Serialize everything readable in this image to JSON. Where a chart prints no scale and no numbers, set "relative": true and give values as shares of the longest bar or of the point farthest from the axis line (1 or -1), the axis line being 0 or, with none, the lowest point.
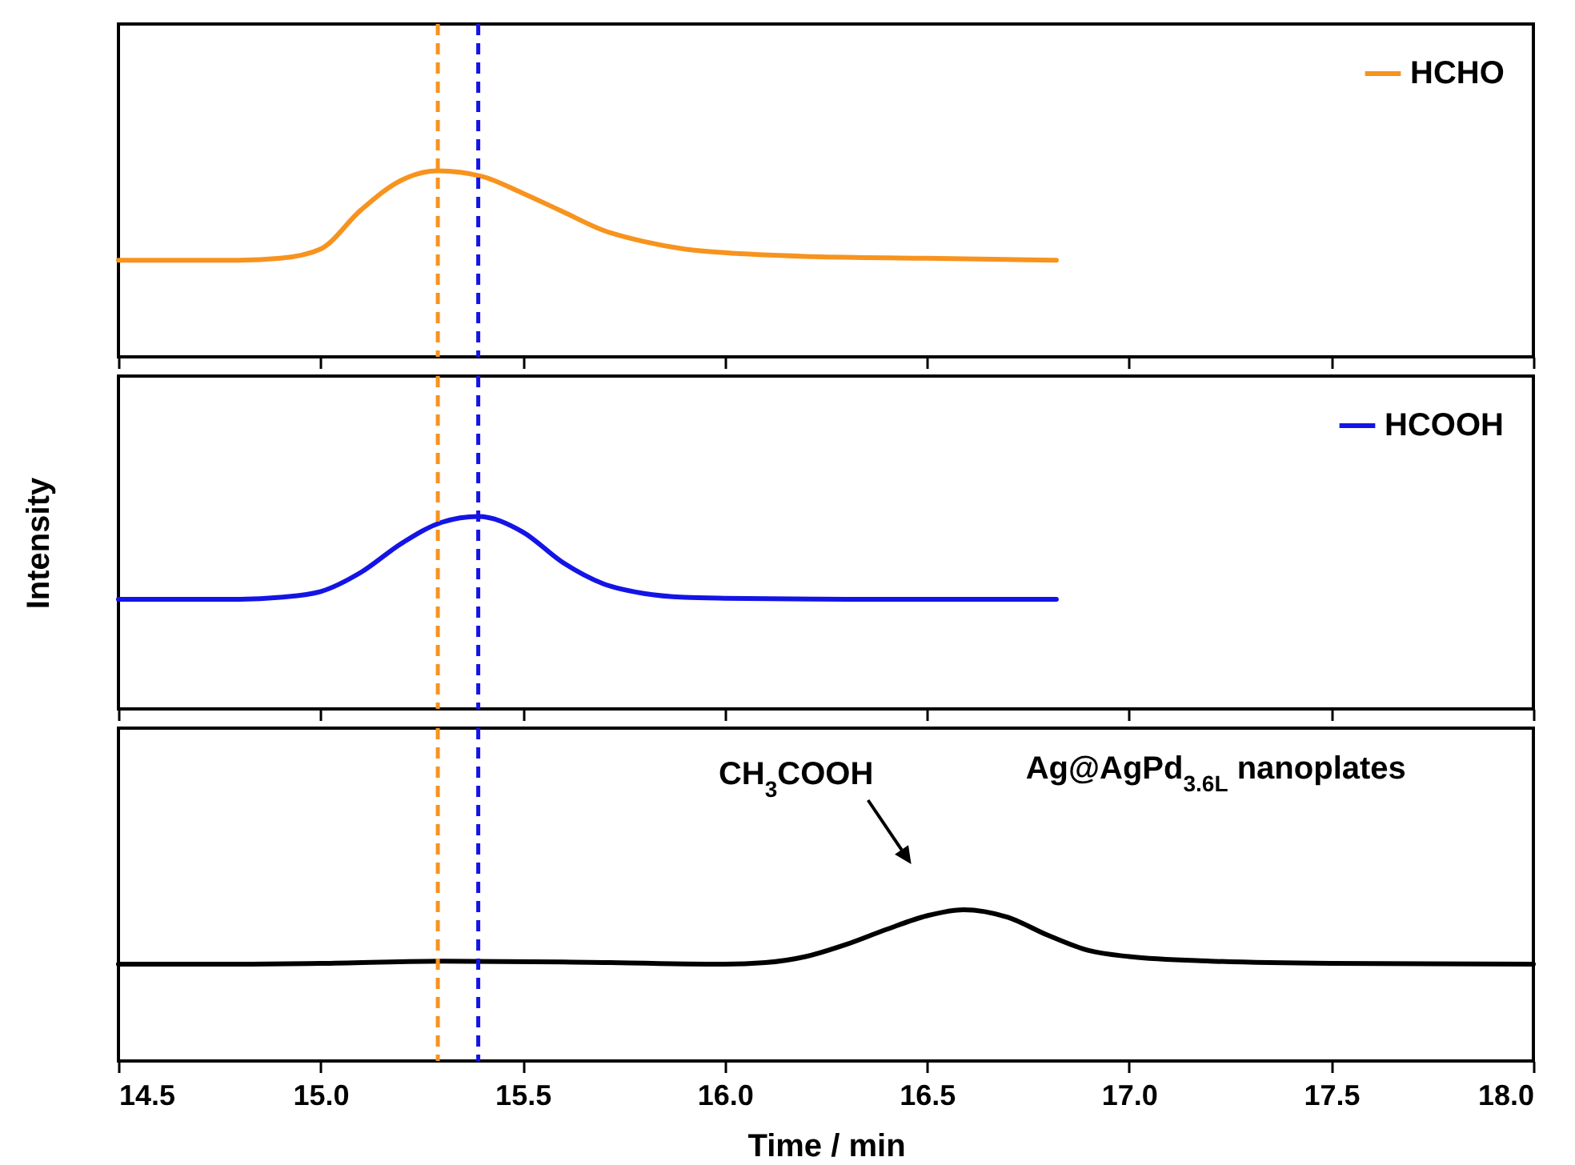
{
  "chart_data": [
    {
      "type": "line",
      "relative": true,
      "xlim": [
        14.5,
        18.0
      ],
      "xticks": [
        14.5,
        15.0,
        15.5,
        16.0,
        16.5,
        17.0,
        17.5,
        18.0
      ],
      "tick_labels": false,
      "legend": "top right",
      "grid": false,
      "line_style": "solid",
      "marker": "none",
      "series": [
        {
          "name": "HCHO",
          "color": "#f7931e",
          "x": [
            14.5,
            14.8,
            14.9,
            15.0,
            15.1,
            15.2,
            15.29,
            15.4,
            15.5,
            15.6,
            15.7,
            15.8,
            15.9,
            16.0,
            16.2,
            16.5,
            16.82
          ],
          "values": [
            0.52,
            0.52,
            0.53,
            0.58,
            0.79,
            0.95,
            1.0,
            0.97,
            0.88,
            0.78,
            0.68,
            0.62,
            0.58,
            0.56,
            0.54,
            0.53,
            0.52
          ]
        }
      ],
      "ref_lines": [
        {
          "axis": "x",
          "value": 15.29,
          "color": "#f7931e",
          "line_style": "dashed"
        },
        {
          "axis": "x",
          "value": 15.39,
          "color": "#1414e6",
          "line_style": "dashed"
        }
      ]
    },
    {
      "type": "line",
      "relative": true,
      "ylabel": "Intensity",
      "xlim": [
        14.5,
        18.0
      ],
      "xticks": [
        14.5,
        15.0,
        15.5,
        16.0,
        16.5,
        17.0,
        17.5,
        18.0
      ],
      "tick_labels": false,
      "legend": "top right",
      "grid": false,
      "line_style": "solid",
      "marker": "none",
      "series": [
        {
          "name": "HCOOH",
          "color": "#1414e6",
          "x": [
            14.5,
            14.8,
            14.9,
            15.0,
            15.1,
            15.2,
            15.3,
            15.39,
            15.5,
            15.6,
            15.7,
            15.8,
            15.9,
            16.0,
            16.3,
            16.82
          ],
          "values": [
            0.57,
            0.57,
            0.58,
            0.61,
            0.71,
            0.86,
            0.97,
            1.0,
            0.92,
            0.76,
            0.65,
            0.6,
            0.58,
            0.575,
            0.57,
            0.57
          ]
        }
      ],
      "ref_lines": [
        {
          "axis": "x",
          "value": 15.29,
          "color": "#f7931e",
          "line_style": "dashed"
        },
        {
          "axis": "x",
          "value": 15.39,
          "color": "#1414e6",
          "line_style": "dashed"
        }
      ]
    },
    {
      "type": "line",
      "relative": true,
      "xlabel": "Time / min",
      "xlim": [
        14.5,
        18.0
      ],
      "xticks": [
        14.5,
        {
          "value": 15,
          "label": "15.0"
        },
        15.5,
        {
          "value": 16,
          "label": "16.0"
        },
        16.5,
        {
          "value": 17,
          "label": "17.0"
        },
        17.5,
        {
          "value": 18,
          "label": "18.0"
        }
      ],
      "legend": false,
      "grid": false,
      "line_style": "solid",
      "marker": "none",
      "annotations": [
        "CH$_{3}$COOH"
      ],
      "series": [
        {
          "name": "Ag@AgPd$_{3.6L}$ nanoplates",
          "color": "#000000",
          "x": [
            14.5,
            14.8,
            15.0,
            15.3,
            15.6,
            16.0,
            16.1,
            16.2,
            16.3,
            16.4,
            16.5,
            16.59,
            16.7,
            16.8,
            16.9,
            17.0,
            17.2,
            17.5,
            18.0
          ],
          "values": [
            0.64,
            0.64,
            0.645,
            0.66,
            0.655,
            0.64,
            0.65,
            0.69,
            0.77,
            0.87,
            0.96,
            1.0,
            0.95,
            0.83,
            0.73,
            0.69,
            0.66,
            0.645,
            0.64
          ]
        }
      ],
      "ref_lines": [
        {
          "axis": "x",
          "value": 15.29,
          "color": "#f7931e",
          "line_style": "dashed"
        },
        {
          "axis": "x",
          "value": 15.39,
          "color": "#1414e6",
          "line_style": "dashed"
        }
      ]
    }
  ]
}
